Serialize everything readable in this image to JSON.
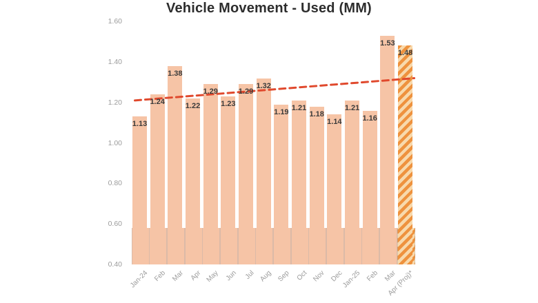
{
  "title": "Vehicle Movement - Used (MM)",
  "chart_data": {
    "type": "bar",
    "title": "Vehicle Movement - Used (MM)",
    "categories": [
      "Jan-24",
      "Feb",
      "Mar",
      "Apr",
      "May",
      "Jun",
      "Jul",
      "Aug",
      "Sep",
      "Oct",
      "Nov",
      "Dec",
      "Jan-25",
      "Feb",
      "Mar",
      "Apr (Proj)*"
    ],
    "values": [
      1.13,
      1.24,
      1.38,
      1.22,
      1.29,
      1.23,
      1.29,
      1.32,
      1.19,
      1.21,
      1.18,
      1.14,
      1.21,
      1.16,
      1.53,
      1.48
    ],
    "value_labels": [
      "1.13",
      "1.24",
      "1.38",
      "1.22",
      "1.29",
      "1.23",
      "1.29",
      "1.32",
      "1.19",
      "1.21",
      "1.18",
      "1.14",
      "1.21",
      "1.16",
      "1.53",
      "1.48"
    ],
    "projected_index": 15,
    "ylim": [
      0.4,
      1.6
    ],
    "yticks": [
      1.6,
      1.4,
      1.2,
      1.0,
      0.8,
      0.6,
      0.4
    ],
    "ytick_labels": [
      "1.60",
      "1.40",
      "1.20",
      "1.00",
      "0.80",
      "0.60",
      "0.40"
    ],
    "grid": false,
    "legend": false,
    "trendline": {
      "style": "dashed",
      "start_value": 1.21,
      "end_value": 1.32
    },
    "colors": {
      "bar": "#f6c4a6",
      "projected_stripe_dark": "#ee923e",
      "projected_stripe_light": "#f8d9ac",
      "trend": "#e0492d",
      "value_label": "#3b3b3b",
      "axis_label": "#9b9b9b",
      "title": "#2d2d2d"
    }
  }
}
